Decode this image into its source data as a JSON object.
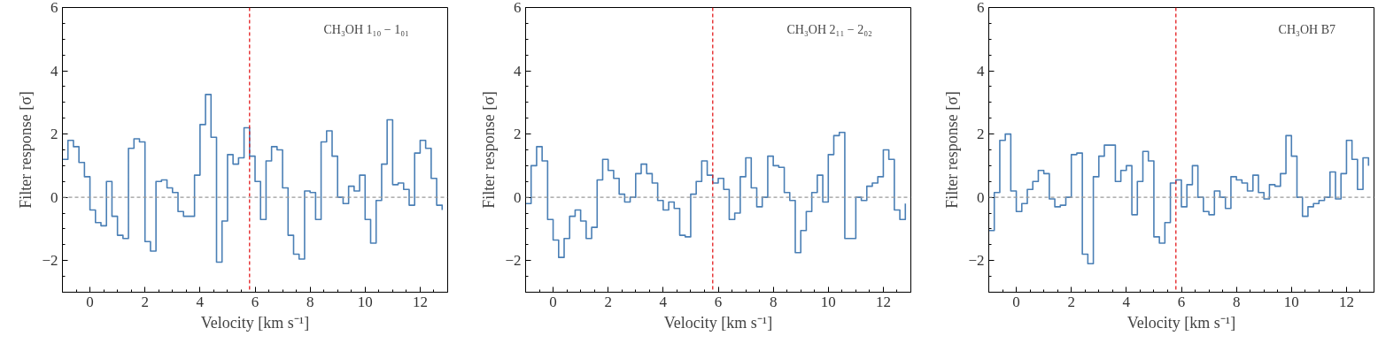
{
  "chart_data": [
    {
      "type": "step",
      "xlabel": "Velocity [km s⁻¹]",
      "ylabel": "Filter response [σ]",
      "annotations": [
        "CH₃OH 1₁₀ − 1₀₁"
      ],
      "xlim": [
        -1,
        13
      ],
      "ylim": [
        -3,
        6
      ],
      "xticks": [
        0,
        2,
        4,
        6,
        8,
        10,
        12
      ],
      "yticks": [
        -2,
        0,
        2,
        4,
        6
      ],
      "grid": false,
      "ref_lines": [
        {
          "axis": "x",
          "value": 5.8,
          "label": null,
          "color": "#e41a1c",
          "line_style": "dashed"
        },
        {
          "axis": "y",
          "value": 0,
          "label": null,
          "color": "#999999",
          "line_style": "dashed"
        }
      ],
      "x": [
        -1,
        -0.8,
        -0.6,
        -0.4,
        -0.2,
        0,
        0.2,
        0.4,
        0.6,
        0.8,
        1,
        1.2,
        1.4,
        1.6,
        1.8,
        2,
        2.2,
        2.4,
        2.6,
        2.8,
        3,
        3.2,
        3.4,
        3.6,
        3.8,
        4,
        4.2,
        4.4,
        4.6,
        4.8,
        5,
        5.2,
        5.4,
        5.6,
        5.8,
        6,
        6.2,
        6.4,
        6.6,
        6.8,
        7,
        7.2,
        7.4,
        7.6,
        7.8,
        8,
        8.2,
        8.4,
        8.6,
        8.8,
        9,
        9.2,
        9.4,
        9.6,
        9.8,
        10,
        10.2,
        10.4,
        10.6,
        10.8,
        11,
        11.2,
        11.4,
        11.6,
        11.8,
        12,
        12.2,
        12.4,
        12.6,
        12.8
      ],
      "series": [
        {
          "color": "#4a7fb5",
          "values": [
            1.2,
            1.8,
            1.6,
            1.1,
            0.65,
            -0.4,
            -0.8,
            -0.9,
            0.5,
            -0.6,
            -1.2,
            -1.3,
            1.55,
            1.85,
            1.75,
            -1.4,
            -1.7,
            0.5,
            0.55,
            0.3,
            0.15,
            -0.45,
            -0.6,
            -0.6,
            0.7,
            2.3,
            3.25,
            1.9,
            -2.05,
            -0.75,
            1.35,
            1.05,
            1.25,
            2.2,
            1.3,
            0.5,
            -0.7,
            1.15,
            1.6,
            1.5,
            0.3,
            -1.2,
            -1.8,
            -1.95,
            0.2,
            0.15,
            -0.7,
            1.75,
            2.1,
            1.3,
            0,
            -0.2,
            0.35,
            0.2,
            0.7,
            -0.7,
            -1.45,
            -0.1,
            1.05,
            2.45,
            0.4,
            0.45,
            0.25,
            -0.25,
            1.4,
            1.8,
            1.55,
            0.6,
            -0.25,
            -0.4
          ]
        }
      ]
    },
    {
      "type": "step",
      "xlabel": "Velocity [km s⁻¹]",
      "ylabel": "Filter response [σ]",
      "annotations": [
        "CH₃OH 2₁₁ − 2₀₂"
      ],
      "xlim": [
        -1,
        13
      ],
      "ylim": [
        -3,
        6
      ],
      "xticks": [
        0,
        2,
        4,
        6,
        8,
        10,
        12
      ],
      "yticks": [
        -2,
        0,
        2,
        4,
        6
      ],
      "grid": false,
      "ref_lines": [
        {
          "axis": "x",
          "value": 5.8,
          "label": null,
          "color": "#e41a1c",
          "line_style": "dashed"
        },
        {
          "axis": "y",
          "value": 0,
          "label": null,
          "color": "#999999",
          "line_style": "dashed"
        }
      ],
      "x": [
        -1,
        -0.8,
        -0.6,
        -0.4,
        -0.2,
        0,
        0.2,
        0.4,
        0.6,
        0.8,
        1,
        1.2,
        1.4,
        1.6,
        1.8,
        2,
        2.2,
        2.4,
        2.6,
        2.8,
        3,
        3.2,
        3.4,
        3.6,
        3.8,
        4,
        4.2,
        4.4,
        4.6,
        4.8,
        5,
        5.2,
        5.4,
        5.6,
        5.8,
        6,
        6.2,
        6.4,
        6.6,
        6.8,
        7,
        7.2,
        7.4,
        7.6,
        7.8,
        8,
        8.2,
        8.4,
        8.6,
        8.8,
        9,
        9.2,
        9.4,
        9.6,
        9.8,
        10,
        10.2,
        10.4,
        10.6,
        10.8,
        11,
        11.2,
        11.4,
        11.6,
        11.8,
        12,
        12.2,
        12.4,
        12.6,
        12.8
      ],
      "series": [
        {
          "color": "#4a7fb5",
          "values": [
            -0.2,
            1.0,
            1.6,
            1.15,
            -0.7,
            -1.35,
            -1.9,
            -1.3,
            -0.6,
            -0.4,
            -0.75,
            -1.3,
            -0.95,
            0.55,
            1.2,
            0.85,
            0.6,
            0.1,
            -0.15,
            0,
            0.75,
            1.05,
            0.75,
            0.45,
            -0.1,
            -0.4,
            -0.15,
            -0.35,
            -1.2,
            -1.25,
            0.1,
            0.5,
            1.15,
            0.7,
            0.45,
            0.6,
            0.25,
            -0.7,
            -0.5,
            0.65,
            1.25,
            0.3,
            -0.3,
            0,
            1.3,
            1.0,
            0.95,
            0.15,
            -0.1,
            -1.75,
            -1.05,
            -0.45,
            0.15,
            0.7,
            -0.15,
            1.35,
            1.95,
            2.05,
            -1.3,
            -1.3,
            0,
            -0.1,
            0.35,
            0.45,
            0.65,
            1.5,
            1.2,
            -0.4,
            -0.7,
            -0.2
          ]
        }
      ]
    },
    {
      "type": "step",
      "xlabel": "Velocity [km s⁻¹]",
      "ylabel": "Filter response [σ]",
      "annotations": [
        "CH₃OH B7"
      ],
      "xlim": [
        -1,
        13
      ],
      "ylim": [
        -3,
        6
      ],
      "xticks": [
        0,
        2,
        4,
        6,
        8,
        10,
        12
      ],
      "yticks": [
        -2,
        0,
        2,
        4,
        6
      ],
      "grid": false,
      "ref_lines": [
        {
          "axis": "x",
          "value": 5.8,
          "label": null,
          "color": "#e41a1c",
          "line_style": "dashed"
        },
        {
          "axis": "y",
          "value": 0,
          "label": null,
          "color": "#999999",
          "line_style": "dashed"
        }
      ],
      "x": [
        -1,
        -0.8,
        -0.6,
        -0.4,
        -0.2,
        0,
        0.2,
        0.4,
        0.6,
        0.8,
        1,
        1.2,
        1.4,
        1.6,
        1.8,
        2,
        2.2,
        2.4,
        2.6,
        2.8,
        3,
        3.2,
        3.4,
        3.6,
        3.8,
        4,
        4.2,
        4.4,
        4.6,
        4.8,
        5,
        5.2,
        5.4,
        5.6,
        5.8,
        6,
        6.2,
        6.4,
        6.6,
        6.8,
        7,
        7.2,
        7.4,
        7.6,
        7.8,
        8,
        8.2,
        8.4,
        8.6,
        8.8,
        9,
        9.2,
        9.4,
        9.6,
        9.8,
        10,
        10.2,
        10.4,
        10.6,
        10.8,
        11,
        11.2,
        11.4,
        11.6,
        11.8,
        12,
        12.2,
        12.4,
        12.6,
        12.8
      ],
      "series": [
        {
          "color": "#4a7fb5",
          "values": [
            -1.05,
            0.15,
            1.8,
            2.0,
            0.2,
            -0.45,
            -0.2,
            0.25,
            0.5,
            0.85,
            0.75,
            -0.05,
            -0.3,
            -0.25,
            0,
            1.35,
            1.4,
            -1.8,
            -2.1,
            0.65,
            1.3,
            1.65,
            1.65,
            0.5,
            0.85,
            1.0,
            -0.55,
            0.5,
            1.45,
            1.15,
            -1.25,
            -1.45,
            -0.8,
            0.45,
            0.55,
            -0.3,
            0.4,
            1.0,
            0,
            -0.45,
            -0.55,
            0.2,
            0,
            -0.35,
            0.65,
            0.55,
            0.45,
            0.2,
            0.7,
            0.15,
            -0.05,
            0.4,
            0.35,
            0.75,
            1.95,
            1.3,
            0,
            -0.6,
            -0.3,
            -0.2,
            -0.1,
            0,
            0.8,
            -0.05,
            0.75,
            1.8,
            1.2,
            0.25,
            1.25,
            1.0
          ]
        }
      ]
    }
  ]
}
